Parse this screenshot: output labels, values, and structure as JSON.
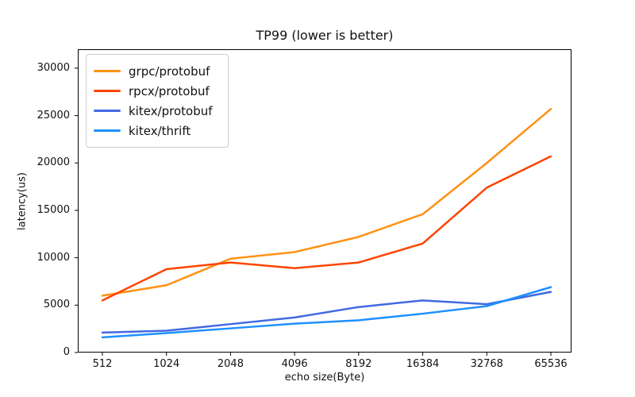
{
  "figure": {
    "title": "TP99 (lower is better)",
    "xlabel": "echo size(Byte)",
    "ylabel": "latency(us)"
  },
  "legend": {
    "position": "upper left",
    "items": [
      "grpc/protobuf",
      "rpcx/protobuf",
      "kitex/protobuf",
      "kitex/thrift"
    ]
  },
  "colors": {
    "grpc_protobuf": "#FF9114",
    "rpcx_protobuf": "#FF4500",
    "kitex_protobuf": "#4169E1",
    "kitex_thrift": "#1E90FF",
    "spine": "#000000",
    "background": "#ffffff"
  },
  "chart_data": {
    "type": "line",
    "title": "TP99 (lower is better)",
    "xlabel": "echo size(Byte)",
    "ylabel": "latency(us)",
    "categories": [
      "512",
      "1024",
      "2048",
      "4096",
      "8192",
      "16384",
      "32768",
      "65536"
    ],
    "series": [
      {
        "name": "grpc/protobuf",
        "color": "#FF9114",
        "values": [
          6000,
          7100,
          9900,
          10600,
          12200,
          14600,
          20000,
          25700
        ]
      },
      {
        "name": "rpcx/protobuf",
        "color": "#FF4500",
        "values": [
          5500,
          8800,
          9500,
          8900,
          9500,
          11500,
          17400,
          20700
        ]
      },
      {
        "name": "kitex/protobuf",
        "color": "#4169E1",
        "values": [
          2100,
          2300,
          3000,
          3700,
          4800,
          5500,
          5100,
          6400
        ]
      },
      {
        "name": "kitex/thrift",
        "color": "#1E90FF",
        "values": [
          1600,
          2050,
          2550,
          3050,
          3400,
          4100,
          4900,
          6900
        ]
      }
    ],
    "ylim": [
      0,
      32000
    ],
    "yticks": [
      0,
      5000,
      10000,
      15000,
      20000,
      25000,
      30000
    ],
    "grid": false,
    "legend_position": "upper left"
  }
}
